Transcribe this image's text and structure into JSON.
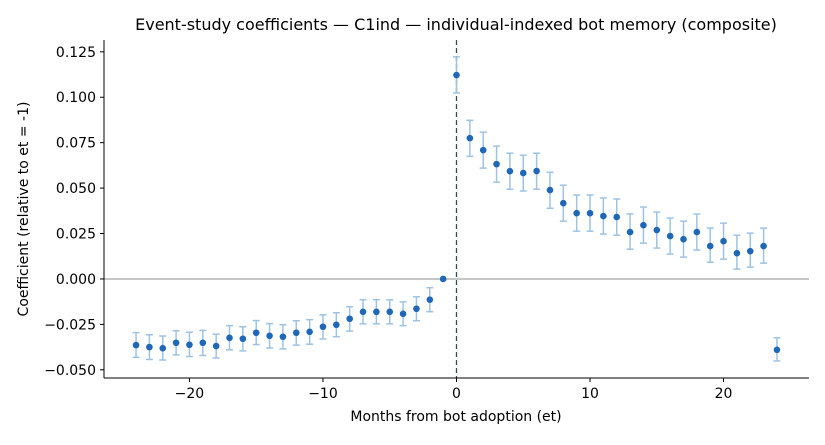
{
  "chart_data": {
    "type": "scatter",
    "title": "Event-study coefficients — C1ind — individual-indexed bot memory (composite)",
    "xlabel": "Months from bot adoption (et)",
    "ylabel": "Coefficient (relative to et = -1)",
    "xlim": [
      -26.4,
      26.4
    ],
    "ylim": [
      -0.0545,
      0.1315
    ],
    "x_ticks": [
      -20,
      -10,
      0,
      10,
      20
    ],
    "x_tick_labels": [
      "−20",
      "−10",
      "0",
      "10",
      "20"
    ],
    "y_ticks": [
      -0.05,
      -0.025,
      0.0,
      0.025,
      0.05,
      0.075,
      0.1,
      0.125
    ],
    "y_tick_labels": [
      "−0.050",
      "−0.025",
      "0.000",
      "0.025",
      "0.050",
      "0.075",
      "0.100",
      "0.125"
    ],
    "reference_lines": {
      "horizontal_y": 0,
      "vertical_x": 0,
      "vertical_style": "dashed"
    },
    "grid": false,
    "colors": {
      "point": "#1f67b8",
      "errorbar": "#9dc3e4",
      "zero_line": "#8c8c8c",
      "vline": "#3a4a5a"
    },
    "series": [
      {
        "points": [
          {
            "x": -24,
            "y": -0.0364,
            "lo": -0.0431,
            "hi": -0.0295
          },
          {
            "x": -23,
            "y": -0.0375,
            "lo": -0.0443,
            "hi": -0.0307
          },
          {
            "x": -22,
            "y": -0.0381,
            "lo": -0.0446,
            "hi": -0.0314
          },
          {
            "x": -21,
            "y": -0.0351,
            "lo": -0.0418,
            "hi": -0.0285
          },
          {
            "x": -20,
            "y": -0.0362,
            "lo": -0.0427,
            "hi": -0.0293
          },
          {
            "x": -19,
            "y": -0.0351,
            "lo": -0.0421,
            "hi": -0.0283
          },
          {
            "x": -18,
            "y": -0.0369,
            "lo": -0.0435,
            "hi": -0.0304
          },
          {
            "x": -17,
            "y": -0.0324,
            "lo": -0.039,
            "hi": -0.0257
          },
          {
            "x": -16,
            "y": -0.0329,
            "lo": -0.0396,
            "hi": -0.0263
          },
          {
            "x": -15,
            "y": -0.0296,
            "lo": -0.0361,
            "hi": -0.0229
          },
          {
            "x": -14,
            "y": -0.0313,
            "lo": -0.038,
            "hi": -0.0246
          },
          {
            "x": -13,
            "y": -0.0318,
            "lo": -0.0385,
            "hi": -0.0252
          },
          {
            "x": -12,
            "y": -0.0296,
            "lo": -0.0364,
            "hi": -0.023
          },
          {
            "x": -11,
            "y": -0.0291,
            "lo": -0.0359,
            "hi": -0.0224
          },
          {
            "x": -10,
            "y": -0.0263,
            "lo": -0.033,
            "hi": -0.0197
          },
          {
            "x": -9,
            "y": -0.0252,
            "lo": -0.0318,
            "hi": -0.0186
          },
          {
            "x": -8,
            "y": -0.0219,
            "lo": -0.0287,
            "hi": -0.0153
          },
          {
            "x": -7,
            "y": -0.0181,
            "lo": -0.0247,
            "hi": -0.0114
          },
          {
            "x": -6,
            "y": -0.0181,
            "lo": -0.0247,
            "hi": -0.0114
          },
          {
            "x": -5,
            "y": -0.0181,
            "lo": -0.0247,
            "hi": -0.0115
          },
          {
            "x": -4,
            "y": -0.0192,
            "lo": -0.0257,
            "hi": -0.0126
          },
          {
            "x": -3,
            "y": -0.0164,
            "lo": -0.023,
            "hi": -0.0098
          },
          {
            "x": -2,
            "y": -0.0114,
            "lo": -0.018,
            "hi": -0.0048
          },
          {
            "x": -1,
            "y": 0.0,
            "lo": 0.0,
            "hi": 0.0
          },
          {
            "x": 0,
            "y": 0.1122,
            "lo": 0.1024,
            "hi": 0.1222
          },
          {
            "x": 1,
            "y": 0.0775,
            "lo": 0.0675,
            "hi": 0.0873
          },
          {
            "x": 2,
            "y": 0.0709,
            "lo": 0.061,
            "hi": 0.0808
          },
          {
            "x": 3,
            "y": 0.0632,
            "lo": 0.0533,
            "hi": 0.0731
          },
          {
            "x": 4,
            "y": 0.0593,
            "lo": 0.0494,
            "hi": 0.0692
          },
          {
            "x": 5,
            "y": 0.0583,
            "lo": 0.0484,
            "hi": 0.0681
          },
          {
            "x": 6,
            "y": 0.0594,
            "lo": 0.0494,
            "hi": 0.0692
          },
          {
            "x": 7,
            "y": 0.0489,
            "lo": 0.0389,
            "hi": 0.0587
          },
          {
            "x": 8,
            "y": 0.0417,
            "lo": 0.0318,
            "hi": 0.0516
          },
          {
            "x": 9,
            "y": 0.0362,
            "lo": 0.0263,
            "hi": 0.0462
          },
          {
            "x": 10,
            "y": 0.0362,
            "lo": 0.0263,
            "hi": 0.0462
          },
          {
            "x": 11,
            "y": 0.0346,
            "lo": 0.0247,
            "hi": 0.0446
          },
          {
            "x": 12,
            "y": 0.0341,
            "lo": 0.0241,
            "hi": 0.044
          },
          {
            "x": 13,
            "y": 0.0258,
            "lo": 0.0164,
            "hi": 0.0358
          },
          {
            "x": 14,
            "y": 0.0296,
            "lo": 0.0197,
            "hi": 0.0396
          },
          {
            "x": 15,
            "y": 0.0269,
            "lo": 0.017,
            "hi": 0.0368
          },
          {
            "x": 16,
            "y": 0.0236,
            "lo": 0.0137,
            "hi": 0.0335
          },
          {
            "x": 17,
            "y": 0.0219,
            "lo": 0.012,
            "hi": 0.0318
          },
          {
            "x": 18,
            "y": 0.0258,
            "lo": 0.0159,
            "hi": 0.0357
          },
          {
            "x": 19,
            "y": 0.0181,
            "lo": 0.0092,
            "hi": 0.028
          },
          {
            "x": 20,
            "y": 0.0208,
            "lo": 0.0109,
            "hi": 0.0307
          },
          {
            "x": 21,
            "y": 0.0142,
            "lo": 0.0054,
            "hi": 0.0241
          },
          {
            "x": 22,
            "y": 0.0153,
            "lo": 0.0065,
            "hi": 0.0252
          },
          {
            "x": 23,
            "y": 0.0181,
            "lo": 0.0087,
            "hi": 0.028
          },
          {
            "x": 24,
            "y": -0.039,
            "lo": -0.0451,
            "hi": -0.0324
          }
        ]
      }
    ]
  }
}
